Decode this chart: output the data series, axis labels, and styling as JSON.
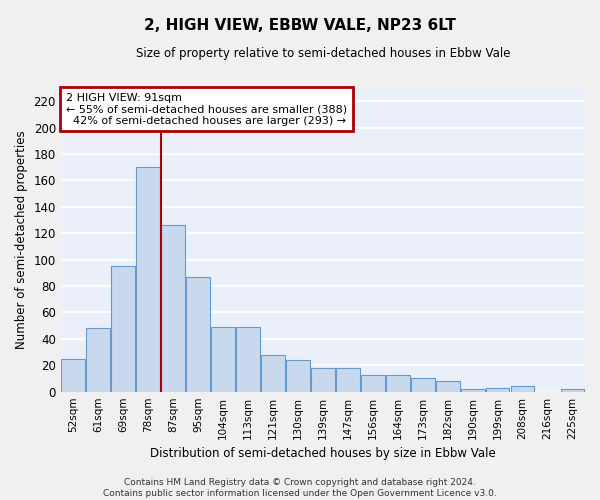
{
  "title": "2, HIGH VIEW, EBBW VALE, NP23 6LT",
  "subtitle": "Size of property relative to semi-detached houses in Ebbw Vale",
  "xlabel": "Distribution of semi-detached houses by size in Ebbw Vale",
  "ylabel": "Number of semi-detached properties",
  "categories": [
    "52sqm",
    "61sqm",
    "69sqm",
    "78sqm",
    "87sqm",
    "95sqm",
    "104sqm",
    "113sqm",
    "121sqm",
    "130sqm",
    "139sqm",
    "147sqm",
    "156sqm",
    "164sqm",
    "173sqm",
    "182sqm",
    "190sqm",
    "199sqm",
    "208sqm",
    "216sqm",
    "225sqm"
  ],
  "values": [
    25,
    48,
    95,
    170,
    126,
    87,
    49,
    49,
    28,
    24,
    18,
    18,
    13,
    13,
    10,
    8,
    2,
    3,
    4,
    0,
    2
  ],
  "bar_color": "#c8d9ee",
  "bar_edge_color": "#6699cc",
  "subject_bar_index": 4,
  "subject_label": "2 HIGH VIEW: 91sqm",
  "pct_smaller": 55,
  "n_smaller": 388,
  "pct_larger": 42,
  "n_larger": 293,
  "annotation_box_color": "#ffffff",
  "annotation_box_edge": "#aa0000",
  "vline_color": "#aa0000",
  "ylim": [
    0,
    230
  ],
  "yticks": [
    0,
    20,
    40,
    60,
    80,
    100,
    120,
    140,
    160,
    180,
    200,
    220
  ],
  "fig_bg_color": "#f0f0f0",
  "axes_bg_color": "#eaeffa",
  "grid_color": "#ffffff",
  "footer_line1": "Contains HM Land Registry data © Crown copyright and database right 2024.",
  "footer_line2": "Contains public sector information licensed under the Open Government Licence v3.0."
}
